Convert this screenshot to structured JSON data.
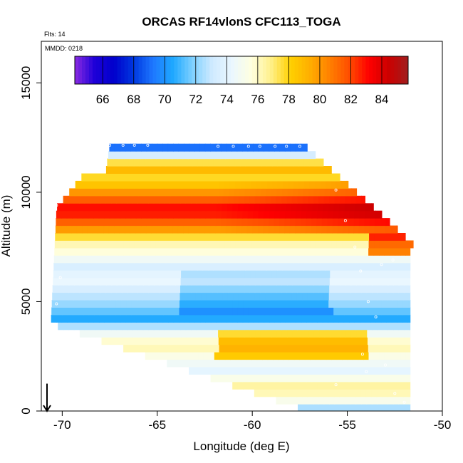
{
  "chart_data": {
    "type": "heatmap",
    "title": "ORCAS RF14vlonS CFC113_TOGA",
    "flights_label": "Flts: 14",
    "date_label": "MMDD: 0218",
    "xlabel": "Longitude (deg E)",
    "ylabel": "Altitude (m)",
    "xlim": [
      -71.1,
      -50
    ],
    "ylim": [
      0,
      16900
    ],
    "xticks": [
      -70,
      -65,
      -60,
      -55,
      -50
    ],
    "yticks": [
      0,
      5000,
      10000,
      15000
    ],
    "colorbar": {
      "min": 64.2,
      "max": 85.7,
      "ticks": [
        66,
        68,
        70,
        72,
        74,
        76,
        78,
        80,
        82,
        84
      ],
      "colors": [
        "#8a2be2",
        "#1e00d8",
        "#0000cc",
        "#0038e0",
        "#1e78ff",
        "#1ea8ff",
        "#7ed0ff",
        "#cfeaff",
        "#eaf7ff",
        "#ffffe0",
        "#fff08a",
        "#ffd000",
        "#ffae00",
        "#ff8000",
        "#ff4d00",
        "#ff0000",
        "#cc0000",
        "#a01e1e"
      ]
    },
    "layers": [
      {
        "alt": 12100,
        "value": 68.5
      },
      {
        "alt": 11700,
        "value": 73.5
      },
      {
        "alt": 11200,
        "value": 79.5
      },
      {
        "alt": 10600,
        "value": 77.5
      },
      {
        "alt": 9900,
        "value": 80.5
      },
      {
        "alt": 9200,
        "value": 83.5
      },
      {
        "alt": 8400,
        "value": 80.5
      },
      {
        "alt": 7800,
        "value": 76.5
      },
      {
        "alt": 7200,
        "value": 75.5
      },
      {
        "alt": 6600,
        "value": 73.5
      },
      {
        "alt": 6000,
        "value": 74.5
      },
      {
        "alt": 5400,
        "value": 73
      },
      {
        "alt": 4800,
        "value": 72
      },
      {
        "alt": 4200,
        "value": 70.5
      },
      {
        "alt": 3600,
        "value": 74.5
      },
      {
        "alt": 3000,
        "value": 76.5
      },
      {
        "alt": 2400,
        "value": 75
      },
      {
        "alt": 1800,
        "value": 74
      },
      {
        "alt": 1200,
        "value": 76.5
      },
      {
        "alt": 600,
        "value": 76
      },
      {
        "alt": 150,
        "value": 72.5
      }
    ],
    "samples": [
      {
        "lon": -67.5,
        "alt": 12150
      },
      {
        "lon": -66.8,
        "alt": 12150
      },
      {
        "lon": -66.2,
        "alt": 12150
      },
      {
        "lon": -65.5,
        "alt": 12150
      },
      {
        "lon": -61.8,
        "alt": 12100
      },
      {
        "lon": -61.0,
        "alt": 12100
      },
      {
        "lon": -60.2,
        "alt": 12100
      },
      {
        "lon": -59.6,
        "alt": 12100
      },
      {
        "lon": -58.8,
        "alt": 12100
      },
      {
        "lon": -58.2,
        "alt": 12100
      },
      {
        "lon": -57.5,
        "alt": 12100
      },
      {
        "lon": -68.3,
        "alt": 11100
      },
      {
        "lon": -70.3,
        "alt": 9400
      },
      {
        "lon": -55.6,
        "alt": 10100
      },
      {
        "lon": -55.1,
        "alt": 8700
      },
      {
        "lon": -54.6,
        "alt": 7500
      },
      {
        "lon": -53.2,
        "alt": 6700
      },
      {
        "lon": -52.6,
        "alt": 6900
      },
      {
        "lon": -54.3,
        "alt": 6400
      },
      {
        "lon": -70.1,
        "alt": 6100
      },
      {
        "lon": -53.9,
        "alt": 5000
      },
      {
        "lon": -70.3,
        "alt": 4900
      },
      {
        "lon": -70.6,
        "alt": 3900
      },
      {
        "lon": -53.5,
        "alt": 4300
      },
      {
        "lon": -54.2,
        "alt": 2600
      },
      {
        "lon": -53.0,
        "alt": 2100
      },
      {
        "lon": -55.6,
        "alt": 1200
      },
      {
        "lon": -52.5,
        "alt": 800
      },
      {
        "lon": -52.0,
        "alt": 400
      },
      {
        "lon": -54.0,
        "alt": 1800
      }
    ],
    "arrow_at": {
      "lon": -70.8,
      "alt_from": 600,
      "alt_to": 0
    }
  }
}
